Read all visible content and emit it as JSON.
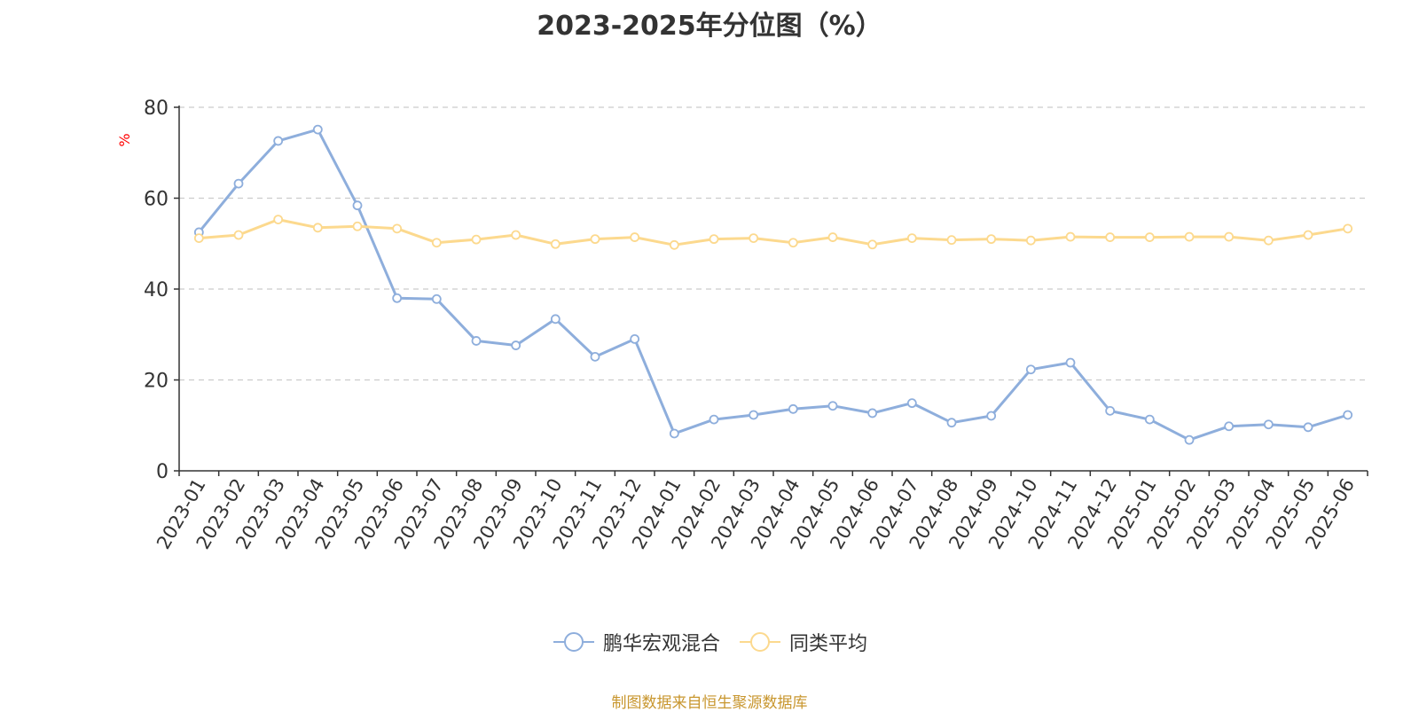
{
  "chart_data": {
    "type": "line",
    "title": "2023-2025年分位图（%）",
    "ylabel": "%",
    "ylim": [
      0,
      80
    ],
    "yticks": [
      0,
      20,
      40,
      60,
      80
    ],
    "grid": true,
    "legend_position": "bottom-center",
    "categories": [
      "2023-01",
      "2023-02",
      "2023-03",
      "2023-04",
      "2023-05",
      "2023-06",
      "2023-07",
      "2023-08",
      "2023-09",
      "2023-10",
      "2023-11",
      "2023-12",
      "2024-01",
      "2024-02",
      "2024-03",
      "2024-04",
      "2024-05",
      "2024-06",
      "2024-07",
      "2024-08",
      "2024-09",
      "2024-10",
      "2024-11",
      "2024-12",
      "2025-01",
      "2025-02",
      "2025-03",
      "2025-04",
      "2025-05",
      "2025-06"
    ],
    "series": [
      {
        "name": "鹏华宏观混合",
        "color": "#8eaedc",
        "values": [
          52.5,
          63.2,
          72.6,
          75.1,
          58.4,
          38.0,
          37.8,
          28.6,
          27.6,
          33.4,
          25.1,
          29.0,
          8.2,
          11.3,
          12.3,
          13.6,
          14.3,
          12.7,
          14.9,
          10.6,
          12.1,
          22.3,
          23.8,
          13.2,
          11.3,
          6.8,
          9.8,
          10.2,
          9.6,
          12.3
        ]
      },
      {
        "name": "同类平均",
        "color": "#fcd98e",
        "values": [
          51.2,
          51.9,
          55.3,
          53.5,
          53.8,
          53.3,
          50.2,
          50.9,
          51.9,
          49.9,
          51.0,
          51.4,
          49.7,
          51.0,
          51.2,
          50.2,
          51.4,
          49.8,
          51.2,
          50.8,
          51.0,
          50.7,
          51.5,
          51.4,
          51.4,
          51.5,
          51.5,
          50.7,
          51.9,
          53.3
        ]
      }
    ]
  },
  "footer": {
    "source_note": "制图数据来自恒生聚源数据库",
    "source_color": "#c8962e"
  }
}
